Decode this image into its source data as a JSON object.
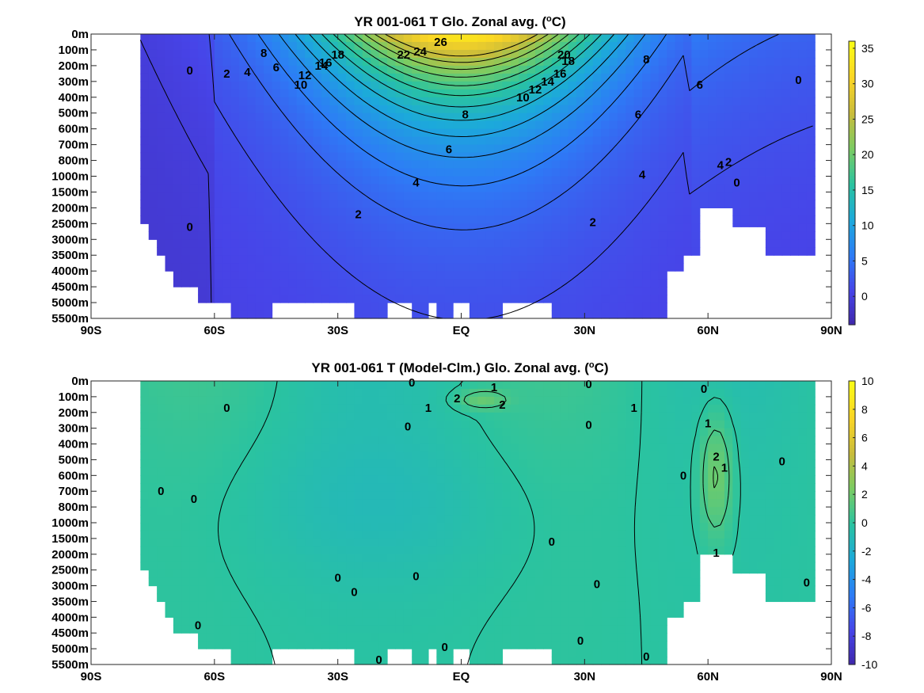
{
  "colors": {
    "colormap": [
      "#3e26a8",
      "#4744e8",
      "#2d7cf6",
      "#1ca9db",
      "#2ac3a0",
      "#7acc63",
      "#c9bc3b",
      "#fbd525",
      "#f9fb15"
    ],
    "missing": "#ffffff",
    "contour": "#000000"
  },
  "chart_data": [
    {
      "type": "heatmap",
      "title": "YR 001-061 T Glo. Zonal avg. (oC)",
      "title_main": "YR 001-061 T Glo. Zonal avg. (",
      "title_sup": "o",
      "title_tail": "C)",
      "x_tick_labels": [
        "90S",
        "60S",
        "30S",
        "EQ",
        "30N",
        "60N",
        "90N"
      ],
      "x_ticks": [
        -90,
        -60,
        -30,
        0,
        30,
        60,
        90
      ],
      "y_tick_labels": [
        "0m",
        "100m",
        "200m",
        "300m",
        "400m",
        "500m",
        "600m",
        "700m",
        "800m",
        "1000m",
        "1500m",
        "2000m",
        "2500m",
        "3000m",
        "3500m",
        "4000m",
        "4500m",
        "5000m",
        "5500m"
      ],
      "y_levels": [
        0,
        100,
        200,
        300,
        400,
        500,
        600,
        700,
        800,
        1000,
        1500,
        2000,
        2500,
        3000,
        3500,
        4000,
        4500,
        5000,
        5500
      ],
      "colorbar": {
        "ticks": [
          35,
          30,
          25,
          20,
          15,
          10,
          5,
          0
        ],
        "tick_labels": [
          "35",
          "30",
          "25",
          "20",
          "15",
          "10",
          "5",
          "0"
        ],
        "range": [
          -4,
          36
        ]
      },
      "contour_labels": [
        {
          "text": "26",
          "lat": -5,
          "z": 0.5
        },
        {
          "text": "24",
          "lat": -10,
          "z": 1.1
        },
        {
          "text": "22",
          "lat": -14,
          "z": 1.3
        },
        {
          "text": "20",
          "lat": 25,
          "z": 1.3
        },
        {
          "text": "18",
          "lat": 26,
          "z": 1.7
        },
        {
          "text": "16",
          "lat": 24,
          "z": 2.5
        },
        {
          "text": "14",
          "lat": 21,
          "z": 3.0
        },
        {
          "text": "12",
          "lat": 18,
          "z": 3.5
        },
        {
          "text": "10",
          "lat": 15,
          "z": 4.0
        },
        {
          "text": "8",
          "lat": 1,
          "z": 5.1
        },
        {
          "text": "6",
          "lat": -3,
          "z": 7.3
        },
        {
          "text": "4",
          "lat": -11,
          "z": 9.4
        },
        {
          "text": "2",
          "lat": -25,
          "z": 11.4
        },
        {
          "text": "2",
          "lat": 32,
          "z": 11.9
        },
        {
          "text": "0",
          "lat": -66,
          "z": 12.2
        },
        {
          "text": "18",
          "lat": -30,
          "z": 1.3
        },
        {
          "text": "16",
          "lat": -33,
          "z": 1.8
        },
        {
          "text": "14",
          "lat": -34,
          "z": 2.0
        },
        {
          "text": "12",
          "lat": -38,
          "z": 2.6
        },
        {
          "text": "10",
          "lat": -39,
          "z": 3.2
        },
        {
          "text": "8",
          "lat": -48,
          "z": 1.2
        },
        {
          "text": "6",
          "lat": -45,
          "z": 2.1
        },
        {
          "text": "4",
          "lat": -52,
          "z": 2.4
        },
        {
          "text": "2",
          "lat": -57,
          "z": 2.5
        },
        {
          "text": "0",
          "lat": -66,
          "z": 2.3
        },
        {
          "text": "8",
          "lat": 45,
          "z": 1.6
        },
        {
          "text": "6",
          "lat": 43,
          "z": 5.1
        },
        {
          "text": "6",
          "lat": 58,
          "z": 3.2
        },
        {
          "text": "4",
          "lat": 44,
          "z": 8.9
        },
        {
          "text": "4",
          "lat": 63,
          "z": 8.3
        },
        {
          "text": "2",
          "lat": 65,
          "z": 8.1
        },
        {
          "text": "0",
          "lat": 67,
          "z": 9.4
        },
        {
          "text": "0",
          "lat": 82,
          "z": 2.9
        }
      ]
    },
    {
      "type": "heatmap",
      "title": "YR 001-061 T (Model-Clm.) Glo. Zonal avg. (oC)",
      "title_main": "YR 001-061 T (Model-Clm.) Glo. Zonal avg. (",
      "title_sup": "o",
      "title_tail": "C)",
      "x_tick_labels": [
        "90S",
        "60S",
        "30S",
        "EQ",
        "30N",
        "60N",
        "90N"
      ],
      "x_ticks": [
        -90,
        -60,
        -30,
        0,
        30,
        60,
        90
      ],
      "y_tick_labels": [
        "0m",
        "100m",
        "200m",
        "300m",
        "400m",
        "500m",
        "600m",
        "700m",
        "800m",
        "1000m",
        "1500m",
        "2000m",
        "2500m",
        "3000m",
        "3500m",
        "4000m",
        "4500m",
        "5000m",
        "5500m"
      ],
      "y_levels": [
        0,
        100,
        200,
        300,
        400,
        500,
        600,
        700,
        800,
        1000,
        1500,
        2000,
        2500,
        3000,
        3500,
        4000,
        4500,
        5000,
        5500
      ],
      "colorbar": {
        "ticks": [
          10,
          8,
          6,
          4,
          2,
          0,
          -2,
          -4,
          -6,
          -8,
          -10
        ],
        "tick_labels": [
          "10",
          "8",
          "6",
          "4",
          "2",
          "0",
          "-2",
          "-4",
          "-6",
          "-8",
          "-10"
        ],
        "range": [
          -10,
          10
        ]
      },
      "contour_labels": [
        {
          "text": "0",
          "lat": -12,
          "z": 0.1
        },
        {
          "text": "1",
          "lat": 8,
          "z": 0.4
        },
        {
          "text": "0",
          "lat": 31,
          "z": 0.2
        },
        {
          "text": "0",
          "lat": 59,
          "z": 0.5
        },
        {
          "text": "1",
          "lat": -8,
          "z": 1.7
        },
        {
          "text": "2",
          "lat": -1,
          "z": 1.1
        },
        {
          "text": "2",
          "lat": 10,
          "z": 1.5
        },
        {
          "text": "1",
          "lat": 42,
          "z": 1.7
        },
        {
          "text": "0",
          "lat": -57,
          "z": 1.7
        },
        {
          "text": "0",
          "lat": -13,
          "z": 2.9
        },
        {
          "text": "0",
          "lat": 31,
          "z": 2.8
        },
        {
          "text": "1",
          "lat": 60,
          "z": 2.7
        },
        {
          "text": "2",
          "lat": 62,
          "z": 4.8
        },
        {
          "text": "1",
          "lat": 64,
          "z": 5.5
        },
        {
          "text": "0",
          "lat": 54,
          "z": 6.0
        },
        {
          "text": "0",
          "lat": 78,
          "z": 5.1
        },
        {
          "text": "0",
          "lat": -73,
          "z": 7.0
        },
        {
          "text": "0",
          "lat": -65,
          "z": 7.5
        },
        {
          "text": "1",
          "lat": 62,
          "z": 10.9
        },
        {
          "text": "0",
          "lat": 22,
          "z": 10.2
        },
        {
          "text": "0",
          "lat": -30,
          "z": 12.5
        },
        {
          "text": "0",
          "lat": -11,
          "z": 12.4
        },
        {
          "text": "0",
          "lat": -26,
          "z": 13.4
        },
        {
          "text": "0",
          "lat": 33,
          "z": 12.9
        },
        {
          "text": "0",
          "lat": 84,
          "z": 12.8
        },
        {
          "text": "0",
          "lat": -64,
          "z": 15.5
        },
        {
          "text": "0",
          "lat": 29,
          "z": 16.5
        },
        {
          "text": "0",
          "lat": -4,
          "z": 16.9
        },
        {
          "text": "0",
          "lat": -20,
          "z": 17.7
        },
        {
          "text": "0",
          "lat": 45,
          "z": 17.5
        }
      ]
    }
  ]
}
